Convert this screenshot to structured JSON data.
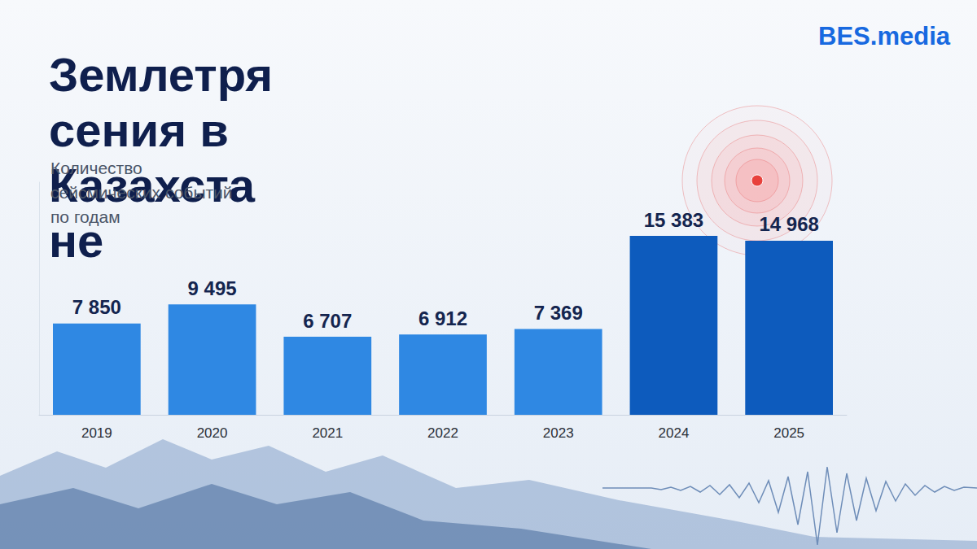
{
  "chart_data": {
    "type": "bar",
    "title": "Землетрясения в Казахстане",
    "subtitle": "Количество сейсмических событий по годам",
    "logo": "BES.media",
    "categories": [
      "2019",
      "2020",
      "2021",
      "2022",
      "2023",
      "2024",
      "2025"
    ],
    "values": [
      7850,
      9495,
      6707,
      6912,
      7369,
      15383,
      14968
    ],
    "value_labels": [
      "7 850",
      "9 495",
      "6 707",
      "6 912",
      "7 369",
      "15 383",
      "14 968"
    ],
    "colors": [
      "#2f88e3",
      "#2f88e3",
      "#2f88e3",
      "#2f88e3",
      "#2f88e3",
      "#0d5bbd",
      "#0d5bbd"
    ],
    "ylim": [
      0,
      20000
    ],
    "grid": false,
    "data_labels": true,
    "tick_labels": "x"
  }
}
